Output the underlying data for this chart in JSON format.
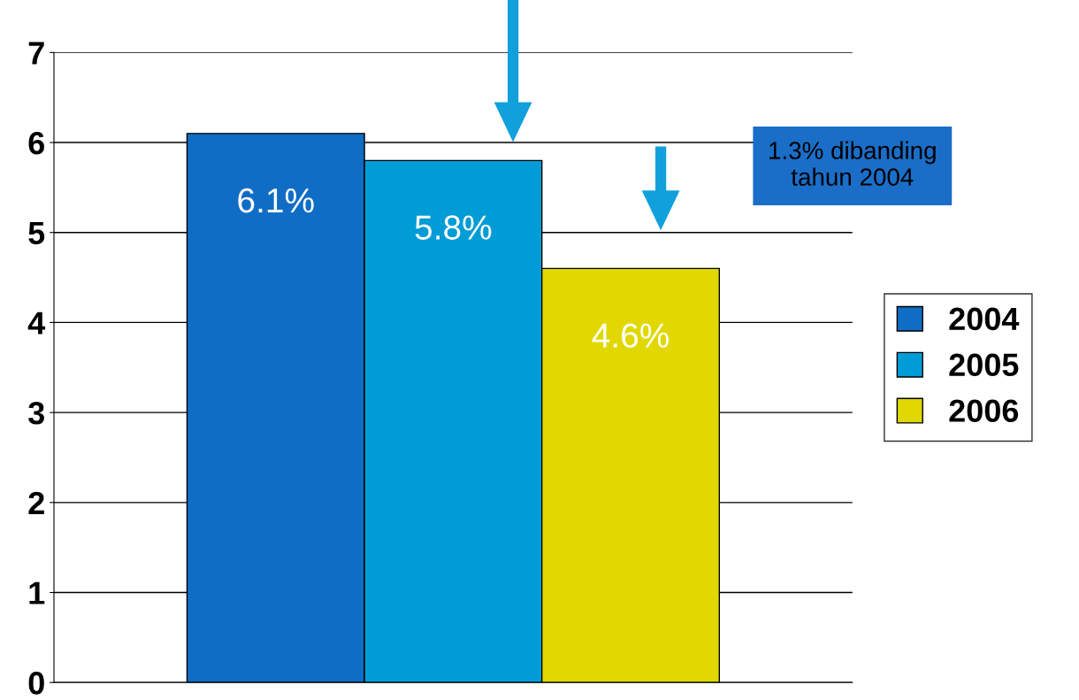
{
  "chart_data": {
    "type": "bar",
    "categories": [
      null
    ],
    "series": [
      {
        "name": "2004",
        "color": "#0f6dc5",
        "values": [
          6.1
        ],
        "value_labels": [
          "6.1%"
        ]
      },
      {
        "name": "2005",
        "color": "#009cd6",
        "values": [
          5.8
        ],
        "value_labels": [
          "5.8%"
        ]
      },
      {
        "name": "2006",
        "color": "#e0d800",
        "values": [
          4.6
        ],
        "value_labels": [
          "4.6%"
        ]
      }
    ],
    "ylim": [
      0,
      7
    ],
    "yticks": [
      0,
      1,
      2,
      3,
      4,
      5,
      6,
      7
    ],
    "grid": "y",
    "legend": "right",
    "annotations": [
      "1.3% dibanding\ntahun 2004"
    ]
  }
}
